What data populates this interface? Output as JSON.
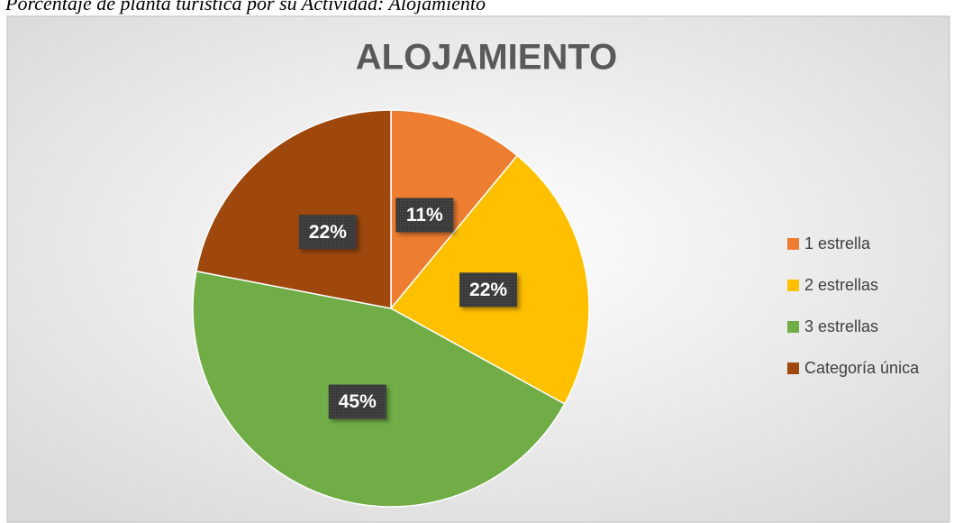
{
  "caption": "Porcentaje de planta turística por su Actividad: Alojamiento",
  "chart_data": {
    "type": "pie",
    "title": "ALOJAMIENTO",
    "categories": [
      "1 estrella",
      "2 estrellas",
      "3 estrellas",
      "Categoría única"
    ],
    "values": [
      11,
      22,
      45,
      22
    ],
    "value_labels": [
      "11%",
      "22%",
      "45%",
      "22%"
    ],
    "colors": [
      "#ED7D31",
      "#FFC000",
      "#70AD47",
      "#9E480E"
    ],
    "legend": "right"
  }
}
